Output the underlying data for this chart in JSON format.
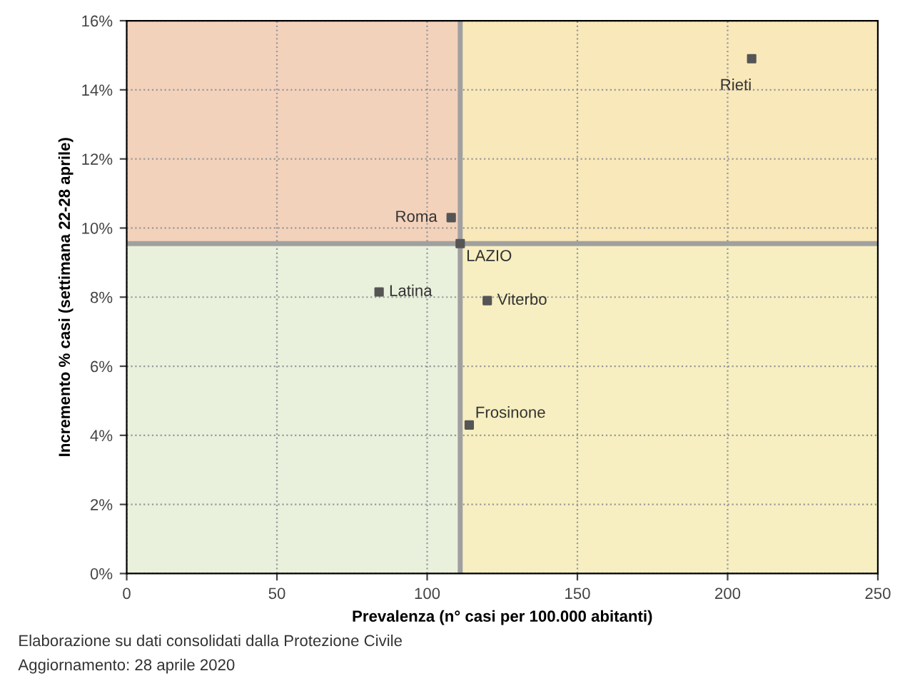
{
  "chart_data": {
    "type": "scatter",
    "xlabel": "Prevalenza (n° casi per 100.000 abitanti)",
    "ylabel": "Incremento % casi (settimana 22-28 aprile)",
    "x": [
      208,
      108,
      111,
      84,
      120,
      114
    ],
    "values": [
      14.9,
      10.3,
      9.55,
      8.15,
      7.9,
      4.3
    ],
    "value_labels": [
      "Rieti",
      "Roma",
      "LAZIO",
      "Latina",
      "Viterbo",
      "Frosinone"
    ],
    "color": "#555555",
    "marker": "square",
    "xlim": [
      0,
      250
    ],
    "xticks": [
      0,
      50,
      100,
      150,
      200,
      250
    ],
    "ylim": [
      0,
      16
    ],
    "yticks": [
      {
        "value": 0,
        "label": "0%"
      },
      {
        "value": 2,
        "label": "2%"
      },
      {
        "value": 4,
        "label": "4%"
      },
      {
        "value": 6,
        "label": "6%"
      },
      {
        "value": 8,
        "label": "8%"
      },
      {
        "value": 10,
        "label": "10%"
      },
      {
        "value": 12,
        "label": "12%"
      },
      {
        "value": 14,
        "label": "14%"
      },
      {
        "value": 16,
        "label": "16%"
      }
    ],
    "grid": true,
    "ref_lines": [
      {
        "axis": "x",
        "value": 111,
        "label": null,
        "color": "#a0a0a0"
      },
      {
        "axis": "y",
        "value": 9.55,
        "label": null,
        "color": "#a0a0a0"
      }
    ],
    "bands": [
      {
        "axis": "y",
        "from": 9.55,
        "to": 16,
        "label": null,
        "color": "#f6c8b0"
      },
      {
        "axis": "x",
        "from": 111,
        "to": 250,
        "label": null,
        "color": "#fbefb8"
      }
    ],
    "annotations": [
      "Elaborazione su dati consolidati dalla Protezione Civile",
      "Aggiornamento: 28 aprile 2020"
    ]
  }
}
